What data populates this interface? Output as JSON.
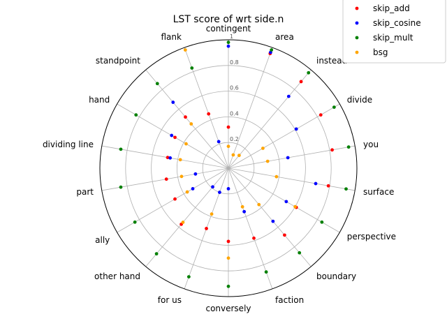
{
  "chart_data": {
    "type": "radar",
    "title": "LST score of wrt side.n",
    "categories": [
      "contingent",
      "area",
      "instead",
      "divide",
      "you",
      "surface",
      "perspective",
      "boundary",
      "faction",
      "conversely",
      "for us",
      "other hand",
      "ally",
      "part",
      "dividing line",
      "hand",
      "standpoint",
      "flank"
    ],
    "r_ticks": [
      "0.2",
      "0.4",
      "0.6",
      "0.8",
      "1"
    ],
    "rlim": [
      0,
      1
    ],
    "grid": true,
    "legend_position": "top-right",
    "series": [
      {
        "name": "skip_add",
        "color": "#ff0000",
        "values": [
          0.32,
          0.95,
          0.88,
          0.83,
          0.82,
          0.79,
          0.61,
          0.68,
          0.58,
          0.57,
          0.5,
          0.57,
          0.48,
          0.49,
          0.48,
          0.48,
          0.52,
          0.45
        ]
      },
      {
        "name": "skip_cosine",
        "color": "#0000ff",
        "values": [
          0.95,
          0.96,
          0.73,
          0.61,
          0.47,
          0.69,
          0.52,
          0.54,
          0.36,
          0.16,
          0.2,
          0.19,
          0.32,
          0.26,
          0.46,
          0.51,
          0.67,
          0.22
        ]
      },
      {
        "name": "skip_mult",
        "color": "#008000",
        "values": [
          0.98,
          0.98,
          0.97,
          0.95,
          0.95,
          0.93,
          0.84,
          0.86,
          0.86,
          0.92,
          0.9,
          0.87,
          0.84,
          0.85,
          0.85,
          0.83,
          0.86,
          0.83
        ]
      },
      {
        "name": "bsg",
        "color": "#ffa500",
        "values": [
          0.17,
          0.11,
          0.13,
          0.31,
          0.31,
          0.38,
          0.6,
          0.37,
          0.32,
          0.7,
          0.38,
          0.55,
          0.37,
          0.37,
          0.38,
          0.38,
          0.45,
          0.98
        ]
      }
    ]
  }
}
